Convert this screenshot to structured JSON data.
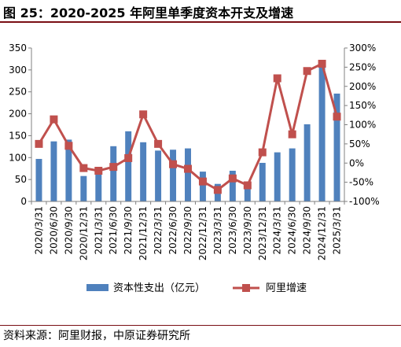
{
  "title": "图 25：2020-2025 年阿里单季度资本开支及增速",
  "source": "资料来源：阿里财报，中原证券研究所",
  "colors": {
    "bar": "#4f81bd",
    "line": "#c0504d",
    "rule": "#7a0f14",
    "axis": "#808080",
    "grid": "#d9d9d9"
  },
  "chart_data": {
    "type": "bar",
    "categories": [
      "2020/3/31",
      "2020/6/30",
      "2020/9/30",
      "2020/12/31",
      "2021/3/31",
      "2021/6/30",
      "2021/9/30",
      "2021/12/31",
      "2022/3/31",
      "2022/6/30",
      "2022/9/30",
      "2022/12/31",
      "2023/3/31",
      "2023/6/30",
      "2023/9/30",
      "2023/12/31",
      "2024/3/31",
      "2024/6/30",
      "2024/9/30",
      "2024/12/31",
      "2025/3/31"
    ],
    "series": [
      {
        "name": "资本性支出（亿元）",
        "type": "bar",
        "axis": "left",
        "values": [
          97,
          137,
          141,
          58,
          75,
          126,
          160,
          135,
          116,
          118,
          121,
          68,
          40,
          70,
          31,
          88,
          112,
          121,
          176,
          316,
          246
        ]
      },
      {
        "name": "阿里增速",
        "type": "line",
        "axis": "right",
        "unit": "%",
        "values": [
          50,
          114,
          45,
          -13,
          -20,
          -10,
          13,
          127,
          50,
          -3,
          -15,
          -48,
          -70,
          -40,
          -58,
          28,
          221,
          75,
          240,
          259,
          121
        ]
      }
    ],
    "y_left": {
      "min": 0,
      "max": 350,
      "step": 50
    },
    "y_right": {
      "min": -100,
      "max": 300,
      "step": 50,
      "unit": "%"
    },
    "grid": false,
    "legend": "bottom"
  }
}
